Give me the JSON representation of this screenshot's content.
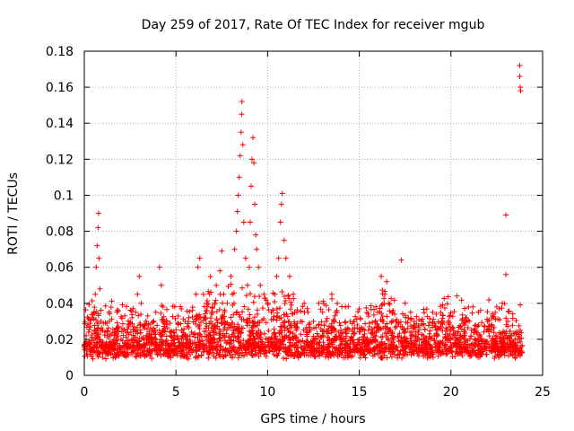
{
  "chart_data": {
    "type": "scatter",
    "title": "Day 259 of 2017, Rate Of TEC Index for receiver mgub",
    "xlabel": "GPS time / hours",
    "ylabel": "ROTI / TECUs",
    "xlim": [
      0,
      25
    ],
    "ylim": [
      0,
      0.18
    ],
    "xticks": [
      0,
      5,
      10,
      15,
      20,
      25
    ],
    "xtick_labels": [
      "0",
      "5",
      "10",
      "15",
      "20",
      "25"
    ],
    "yticks": [
      0,
      0.02,
      0.04,
      0.06,
      0.08,
      0.1,
      0.12,
      0.14,
      0.16,
      0.18
    ],
    "ytick_labels": [
      "0",
      "0.02",
      "0.04",
      "0.06",
      "0.08",
      "0.1",
      "0.12",
      "0.14",
      "0.16",
      "0.18"
    ],
    "grid": true,
    "marker": "plus",
    "series": [
      {
        "name": "ROTI",
        "color": "#ff0000",
        "points": [
          [
            0.0,
            0.017
          ],
          [
            0.1,
            0.022
          ],
          [
            0.2,
            0.028
          ],
          [
            0.3,
            0.031
          ],
          [
            0.4,
            0.02
          ],
          [
            0.5,
            0.035
          ],
          [
            0.6,
            0.045
          ],
          [
            0.65,
            0.06
          ],
          [
            0.7,
            0.072
          ],
          [
            0.75,
            0.082
          ],
          [
            0.78,
            0.09
          ],
          [
            0.8,
            0.065
          ],
          [
            0.85,
            0.048
          ],
          [
            0.9,
            0.03
          ],
          [
            1.0,
            0.025
          ],
          [
            1.2,
            0.018
          ],
          [
            1.4,
            0.022
          ],
          [
            1.6,
            0.015
          ],
          [
            1.8,
            0.025
          ],
          [
            2.0,
            0.02
          ],
          [
            2.2,
            0.018
          ],
          [
            2.4,
            0.028
          ],
          [
            2.6,
            0.032
          ],
          [
            2.8,
            0.035
          ],
          [
            2.9,
            0.045
          ],
          [
            3.0,
            0.055
          ],
          [
            3.1,
            0.04
          ],
          [
            3.3,
            0.028
          ],
          [
            3.5,
            0.02
          ],
          [
            3.7,
            0.025
          ],
          [
            3.9,
            0.035
          ],
          [
            4.1,
            0.06
          ],
          [
            4.2,
            0.05
          ],
          [
            4.3,
            0.038
          ],
          [
            4.5,
            0.03
          ],
          [
            4.7,
            0.022
          ],
          [
            4.9,
            0.018
          ],
          [
            5.1,
            0.02
          ],
          [
            5.3,
            0.025
          ],
          [
            5.5,
            0.03
          ],
          [
            5.7,
            0.032
          ],
          [
            5.9,
            0.036
          ],
          [
            6.1,
            0.045
          ],
          [
            6.2,
            0.06
          ],
          [
            6.3,
            0.065
          ],
          [
            6.5,
            0.045
          ],
          [
            6.7,
            0.038
          ],
          [
            6.9,
            0.03
          ],
          [
            7.0,
            0.035
          ],
          [
            7.2,
            0.05
          ],
          [
            7.4,
            0.058
          ],
          [
            7.5,
            0.069
          ],
          [
            7.6,
            0.045
          ],
          [
            7.8,
            0.04
          ],
          [
            8.0,
            0.055
          ],
          [
            8.2,
            0.07
          ],
          [
            8.3,
            0.08
          ],
          [
            8.35,
            0.091
          ],
          [
            8.4,
            0.1
          ],
          [
            8.45,
            0.11
          ],
          [
            8.5,
            0.122
          ],
          [
            8.55,
            0.135
          ],
          [
            8.58,
            0.145
          ],
          [
            8.6,
            0.152
          ],
          [
            8.65,
            0.128
          ],
          [
            8.7,
            0.085
          ],
          [
            8.8,
            0.065
          ],
          [
            8.9,
            0.05
          ],
          [
            9.0,
            0.06
          ],
          [
            9.05,
            0.085
          ],
          [
            9.1,
            0.105
          ],
          [
            9.15,
            0.12
          ],
          [
            9.2,
            0.132
          ],
          [
            9.25,
            0.118
          ],
          [
            9.3,
            0.095
          ],
          [
            9.35,
            0.078
          ],
          [
            9.4,
            0.07
          ],
          [
            9.5,
            0.06
          ],
          [
            9.6,
            0.05
          ],
          [
            9.8,
            0.045
          ],
          [
            10.0,
            0.04
          ],
          [
            10.2,
            0.035
          ],
          [
            10.4,
            0.045
          ],
          [
            10.5,
            0.055
          ],
          [
            10.6,
            0.065
          ],
          [
            10.7,
            0.085
          ],
          [
            10.75,
            0.095
          ],
          [
            10.8,
            0.101
          ],
          [
            10.9,
            0.075
          ],
          [
            11.0,
            0.065
          ],
          [
            11.2,
            0.055
          ],
          [
            11.4,
            0.045
          ],
          [
            11.6,
            0.035
          ],
          [
            11.8,
            0.03
          ],
          [
            12.0,
            0.04
          ],
          [
            12.2,
            0.035
          ],
          [
            12.5,
            0.03
          ],
          [
            12.8,
            0.04
          ],
          [
            13.0,
            0.035
          ],
          [
            13.2,
            0.03
          ],
          [
            13.5,
            0.045
          ],
          [
            13.8,
            0.04
          ],
          [
            14.0,
            0.025
          ],
          [
            14.5,
            0.03
          ],
          [
            15.0,
            0.02
          ],
          [
            15.5,
            0.025
          ],
          [
            16.0,
            0.035
          ],
          [
            16.2,
            0.055
          ],
          [
            16.4,
            0.045
          ],
          [
            16.5,
            0.052
          ],
          [
            16.6,
            0.04
          ],
          [
            16.8,
            0.035
          ],
          [
            17.0,
            0.03
          ],
          [
            17.3,
            0.064
          ],
          [
            17.5,
            0.04
          ],
          [
            17.8,
            0.035
          ],
          [
            18.0,
            0.03
          ],
          [
            18.5,
            0.028
          ],
          [
            19.0,
            0.035
          ],
          [
            19.5,
            0.03
          ],
          [
            20.0,
            0.025
          ],
          [
            20.5,
            0.022
          ],
          [
            21.0,
            0.03
          ],
          [
            21.2,
            0.038
          ],
          [
            21.5,
            0.035
          ],
          [
            22.0,
            0.03
          ],
          [
            22.2,
            0.025
          ],
          [
            22.5,
            0.038
          ],
          [
            22.8,
            0.04
          ],
          [
            23.0,
            0.089
          ],
          [
            23.0,
            0.056
          ],
          [
            23.1,
            0.03
          ],
          [
            23.3,
            0.022
          ],
          [
            23.5,
            0.02
          ],
          [
            23.75,
            0.172
          ],
          [
            23.75,
            0.166
          ],
          [
            23.78,
            0.16
          ],
          [
            23.8,
            0.158
          ],
          [
            23.78,
            0.025
          ],
          [
            23.8,
            0.015
          ]
        ]
      }
    ]
  }
}
